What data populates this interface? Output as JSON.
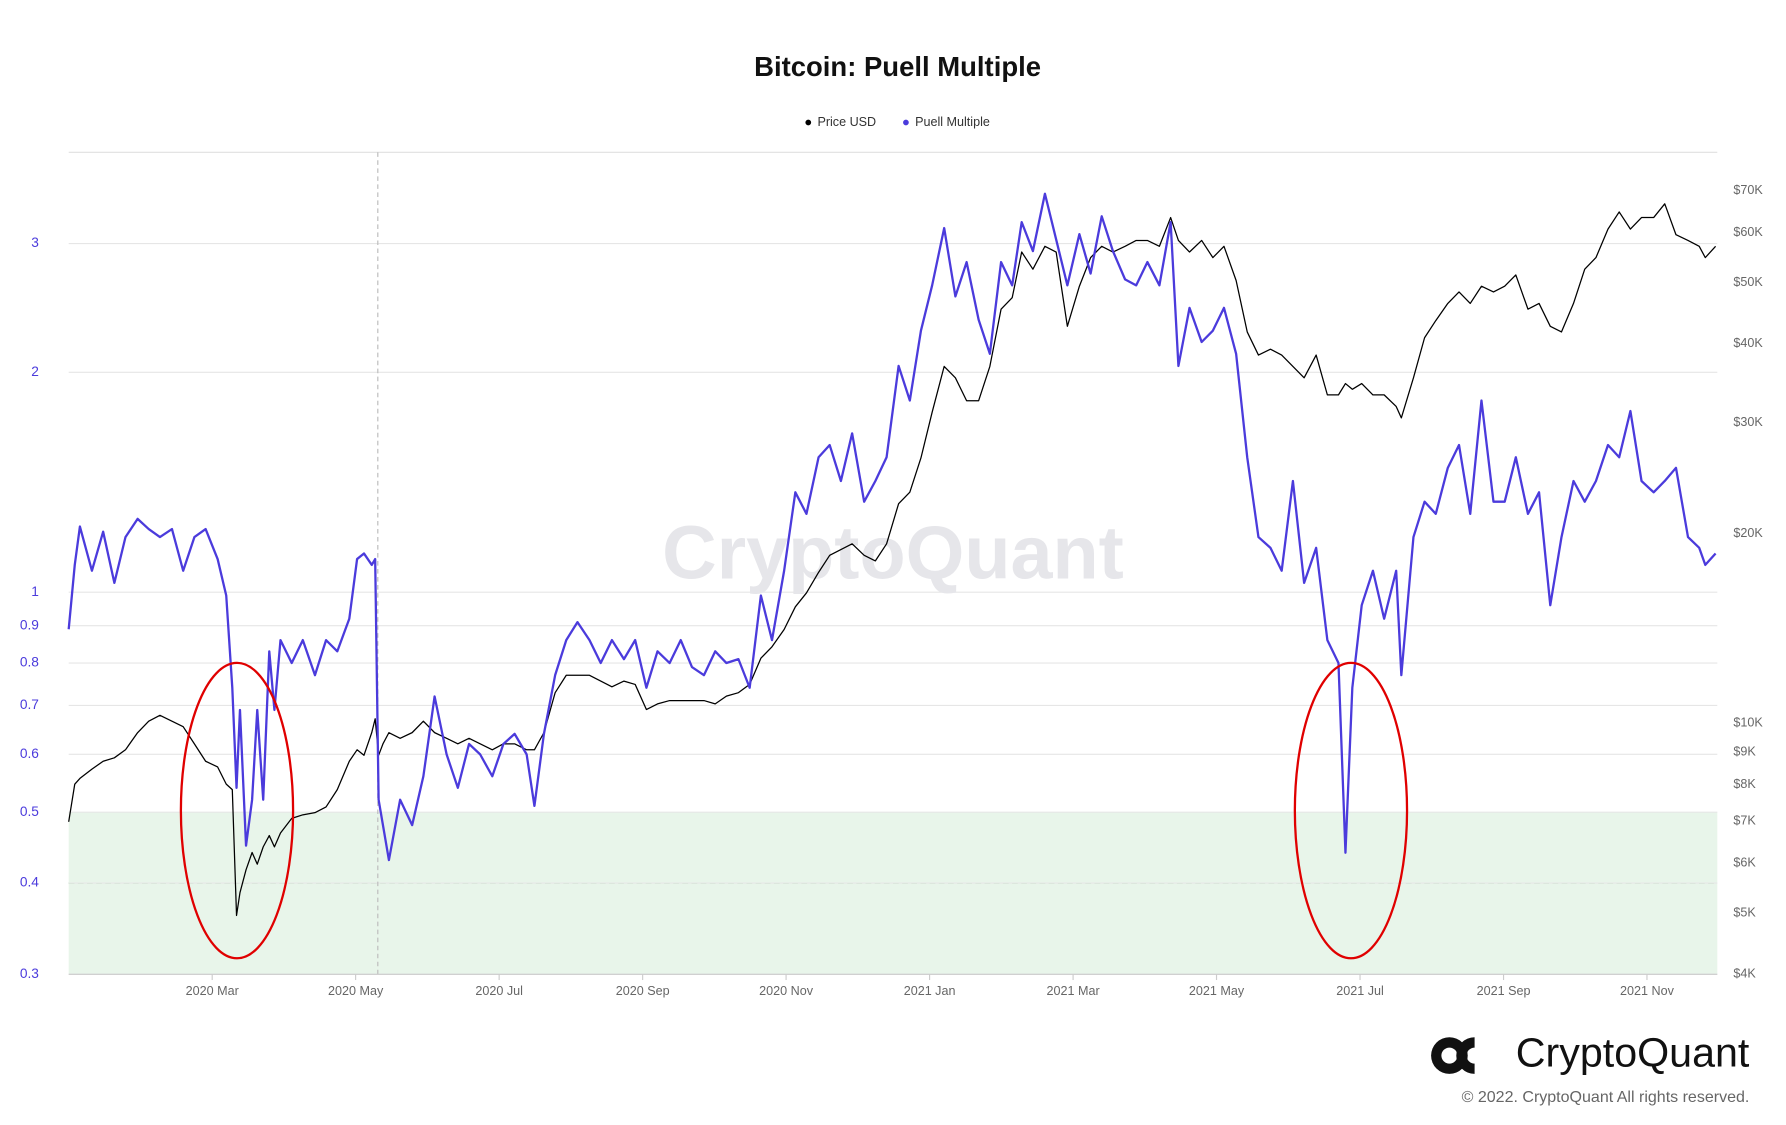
{
  "chart_data": {
    "type": "line",
    "title": "Bitcoin: Puell Multiple",
    "watermark": "CryptoQuant",
    "brand": "CryptoQuant",
    "copyright": "© 2022. CryptoQuant All rights reserved.",
    "log_scale_y": true,
    "log_scale_y2": true,
    "grid": true,
    "legend": "top",
    "x": [
      2020.0,
      2020.007,
      2020.013,
      2020.027,
      2020.04,
      2020.053,
      2020.066,
      2020.08,
      2020.093,
      2020.106,
      2020.12,
      2020.133,
      2020.146,
      2020.159,
      2020.173,
      2020.183,
      2020.19,
      2020.195,
      2020.199,
      2020.206,
      2020.213,
      2020.219,
      2020.226,
      2020.233,
      2020.239,
      2020.246,
      2020.259,
      2020.272,
      2020.286,
      2020.299,
      2020.312,
      2020.326,
      2020.335,
      2020.343,
      2020.352,
      2020.356,
      2020.36,
      2020.365,
      2020.372,
      2020.385,
      2020.399,
      2020.412,
      2020.425,
      2020.439,
      2020.452,
      2020.465,
      2020.478,
      2020.492,
      2020.505,
      2020.518,
      2020.532,
      2020.541,
      2020.552,
      2020.565,
      2020.578,
      2020.591,
      2020.605,
      2020.618,
      2020.631,
      2020.645,
      2020.658,
      2020.671,
      2020.684,
      2020.698,
      2020.711,
      2020.724,
      2020.738,
      2020.751,
      2020.764,
      2020.778,
      2020.791,
      2020.804,
      2020.817,
      2020.831,
      2020.844,
      2020.857,
      2020.871,
      2020.884,
      2020.897,
      2020.91,
      2020.924,
      2020.937,
      2020.95,
      2020.964,
      2020.977,
      2020.99,
      2021.003,
      2021.017,
      2021.03,
      2021.043,
      2021.057,
      2021.07,
      2021.083,
      2021.096,
      2021.107,
      2021.12,
      2021.134,
      2021.147,
      2021.16,
      2021.174,
      2021.187,
      2021.2,
      2021.213,
      2021.227,
      2021.24,
      2021.253,
      2021.267,
      2021.28,
      2021.289,
      2021.302,
      2021.316,
      2021.329,
      2021.342,
      2021.356,
      2021.369,
      2021.382,
      2021.396,
      2021.409,
      2021.422,
      2021.435,
      2021.449,
      2021.462,
      2021.475,
      2021.483,
      2021.491,
      2021.502,
      2021.515,
      2021.528,
      2021.542,
      2021.548,
      2021.562,
      2021.575,
      2021.588,
      2021.602,
      2021.615,
      2021.628,
      2021.641,
      2021.655,
      2021.668,
      2021.681,
      2021.695,
      2021.708,
      2021.721,
      2021.734,
      2021.748,
      2021.761,
      2021.774,
      2021.788,
      2021.801,
      2021.814,
      2021.827,
      2021.841,
      2021.854,
      2021.867,
      2021.881,
      2021.894,
      2021.901,
      2021.913
    ],
    "series": [
      {
        "name": "Price USD",
        "color": "#000000",
        "axis": "y2",
        "values": [
          6980,
          8010,
          8180,
          8460,
          8710,
          8820,
          9080,
          9670,
          10080,
          10300,
          10080,
          9880,
          9280,
          8710,
          8530,
          8010,
          7850,
          4960,
          5390,
          5860,
          6240,
          5980,
          6370,
          6640,
          6370,
          6700,
          7070,
          7160,
          7220,
          7370,
          7850,
          8710,
          9080,
          8900,
          9670,
          10170,
          8900,
          9280,
          9670,
          9470,
          9670,
          10080,
          9670,
          9470,
          9280,
          9470,
          9280,
          9080,
          9280,
          9280,
          9080,
          9080,
          9670,
          11190,
          11920,
          11920,
          11920,
          11670,
          11430,
          11670,
          11530,
          10520,
          10740,
          10870,
          10870,
          10870,
          10870,
          10740,
          11050,
          11190,
          11530,
          12690,
          13230,
          14090,
          15310,
          16100,
          17360,
          18480,
          18870,
          19270,
          18480,
          18100,
          19270,
          22310,
          23260,
          26360,
          31160,
          36830,
          35330,
          32490,
          32490,
          36830,
          45390,
          47330,
          55940,
          52540,
          57120,
          55940,
          42640,
          49350,
          54790,
          57120,
          55940,
          57120,
          58330,
          58330,
          57120,
          63420,
          58330,
          55940,
          58330,
          54790,
          57120,
          50400,
          41770,
          38390,
          39220,
          38390,
          36830,
          35330,
          38390,
          33190,
          33190,
          34600,
          33880,
          34600,
          33190,
          33190,
          31820,
          30520,
          35330,
          40900,
          43530,
          46360,
          48330,
          46360,
          49350,
          48330,
          49350,
          51450,
          45390,
          46360,
          42640,
          41770,
          46360,
          52540,
          54790,
          60810,
          64740,
          60810,
          63420,
          63420,
          66680,
          59570,
          58330,
          57120,
          54790,
          57120
        ]
      },
      {
        "name": "Puell Multiple",
        "color": "#4b3bdc",
        "axis": "y",
        "values": [
          0.89,
          1.09,
          1.23,
          1.07,
          1.21,
          1.03,
          1.19,
          1.26,
          1.22,
          1.19,
          1.22,
          1.07,
          1.19,
          1.22,
          1.11,
          0.99,
          0.74,
          0.54,
          0.69,
          0.45,
          0.52,
          0.69,
          0.52,
          0.83,
          0.69,
          0.86,
          0.8,
          0.86,
          0.77,
          0.86,
          0.83,
          0.92,
          1.11,
          1.13,
          1.09,
          1.11,
          0.52,
          0.48,
          0.43,
          0.52,
          0.48,
          0.56,
          0.72,
          0.6,
          0.54,
          0.62,
          0.6,
          0.56,
          0.62,
          0.64,
          0.6,
          0.51,
          0.64,
          0.77,
          0.86,
          0.91,
          0.86,
          0.8,
          0.86,
          0.81,
          0.86,
          0.74,
          0.83,
          0.8,
          0.86,
          0.79,
          0.77,
          0.83,
          0.8,
          0.81,
          0.74,
          0.99,
          0.86,
          1.07,
          1.37,
          1.28,
          1.53,
          1.59,
          1.42,
          1.65,
          1.33,
          1.42,
          1.53,
          2.04,
          1.83,
          2.28,
          2.63,
          3.15,
          2.54,
          2.83,
          2.36,
          2.12,
          2.83,
          2.63,
          3.21,
          2.93,
          3.51,
          3.04,
          2.63,
          3.09,
          2.73,
          3.27,
          2.93,
          2.68,
          2.63,
          2.83,
          2.63,
          3.21,
          2.04,
          2.45,
          2.2,
          2.28,
          2.45,
          2.12,
          1.53,
          1.19,
          1.15,
          1.07,
          1.42,
          1.03,
          1.15,
          0.86,
          0.8,
          0.44,
          0.74,
          0.96,
          1.07,
          0.92,
          1.07,
          0.77,
          1.19,
          1.33,
          1.28,
          1.48,
          1.59,
          1.28,
          1.83,
          1.33,
          1.33,
          1.53,
          1.28,
          1.37,
          0.96,
          1.19,
          1.42,
          1.33,
          1.42,
          1.59,
          1.53,
          1.77,
          1.42,
          1.37,
          1.42,
          1.48,
          1.19,
          1.15,
          1.09,
          1.13
        ]
      }
    ],
    "zone": {
      "range": [
        0.3,
        0.5
      ],
      "line": 0.4,
      "color": "#e8f5ea",
      "line_color": "#7cbf7c"
    },
    "xlim": [
      2020.0,
      2021.915
    ],
    "xticks": [
      {
        "value": 2020.1667,
        "label": "2020 Mar"
      },
      {
        "value": 2020.3333,
        "label": "2020 May"
      },
      {
        "value": 2020.5,
        "label": "2020 Jul"
      },
      {
        "value": 2020.6667,
        "label": "2020 Sep"
      },
      {
        "value": 2020.8333,
        "label": "2020 Nov"
      },
      {
        "value": 2021.0,
        "label": "2021 Jan"
      },
      {
        "value": 2021.1667,
        "label": "2021 Mar"
      },
      {
        "value": 2021.3333,
        "label": "2021 May"
      },
      {
        "value": 2021.5,
        "label": "2021 Jul"
      },
      {
        "value": 2021.6667,
        "label": "2021 Sep"
      },
      {
        "value": 2021.8333,
        "label": "2021 Nov"
      }
    ],
    "ylim": [
      0.3,
      4
    ],
    "yticks": [
      0.3,
      0.4,
      0.5,
      0.6,
      0.7,
      0.8,
      0.9,
      1,
      2,
      3
    ],
    "y2lim": [
      4000,
      80500
    ],
    "y2ticks": [
      {
        "value": 4000,
        "label": "$4K"
      },
      {
        "value": 5000,
        "label": "$5K"
      },
      {
        "value": 6000,
        "label": "$6K"
      },
      {
        "value": 7000,
        "label": "$7K"
      },
      {
        "value": 8000,
        "label": "$8K"
      },
      {
        "value": 9000,
        "label": "$9K"
      },
      {
        "value": 10000,
        "label": "$10K"
      },
      {
        "value": 20000,
        "label": "$20K"
      },
      {
        "value": 30000,
        "label": "$30K"
      },
      {
        "value": 40000,
        "label": "$40K"
      },
      {
        "value": 50000,
        "label": "$50K"
      },
      {
        "value": 60000,
        "label": "$60K"
      },
      {
        "value": 70000,
        "label": "$70K"
      }
    ]
  }
}
